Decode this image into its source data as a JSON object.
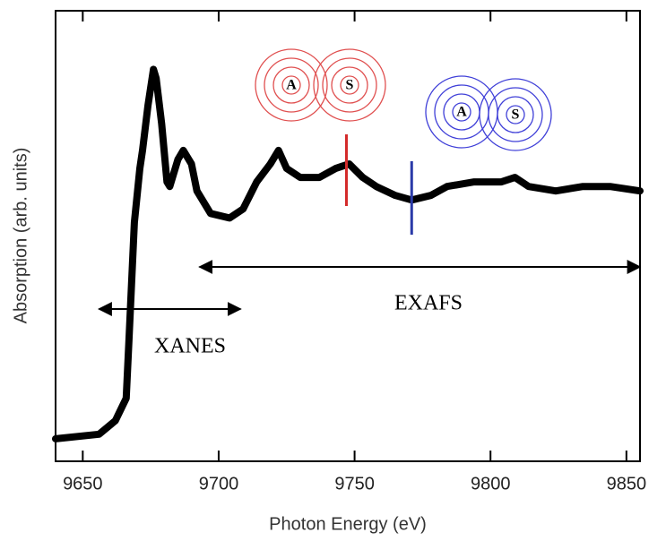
{
  "chart_data": {
    "type": "line",
    "xlabel": "Photon Energy  (eV)",
    "ylabel": "Absorption  (arb. units)",
    "x": [
      9640,
      9656,
      9662,
      9666,
      9667,
      9669,
      9671,
      9672,
      9674,
      9676,
      9677,
      9679,
      9681,
      9682,
      9685,
      9687,
      9690,
      9692,
      9697,
      9704,
      9709,
      9714,
      9719,
      9722,
      9725,
      9730,
      9737,
      9743,
      9748,
      9753,
      9758,
      9765,
      9771,
      9778,
      9784,
      9794,
      9804,
      9809,
      9814,
      9824,
      9834,
      9844,
      9855
    ],
    "series": [
      {
        "color": "#000000",
        "values": [
          0.05,
          0.06,
          0.09,
          0.14,
          0.27,
          0.53,
          0.65,
          0.69,
          0.79,
          0.87,
          0.85,
          0.75,
          0.62,
          0.61,
          0.67,
          0.69,
          0.66,
          0.6,
          0.55,
          0.54,
          0.56,
          0.62,
          0.66,
          0.69,
          0.65,
          0.63,
          0.63,
          0.65,
          0.66,
          0.63,
          0.61,
          0.59,
          0.58,
          0.59,
          0.61,
          0.62,
          0.62,
          0.63,
          0.61,
          0.6,
          0.61,
          0.61,
          0.6
        ]
      }
    ],
    "xlim": [
      9640,
      9855
    ],
    "ylim": [
      0,
      1
    ],
    "xticks": [
      9650,
      9700,
      9750,
      9800,
      9850
    ],
    "markers": [
      {
        "x": 9747,
        "color": "#d42a2a"
      },
      {
        "x": 9771,
        "color": "#2a3aa8"
      }
    ],
    "regions": [
      {
        "label": "XANES",
        "from": 9656,
        "to": 9708
      },
      {
        "label": "EXAFS",
        "from": 9693,
        "to": 9855
      }
    ],
    "icons": [
      {
        "atoms": [
          "A",
          "S"
        ],
        "color": "#e05050"
      },
      {
        "atoms": [
          "A",
          "S"
        ],
        "color": "#4040d8"
      }
    ]
  }
}
